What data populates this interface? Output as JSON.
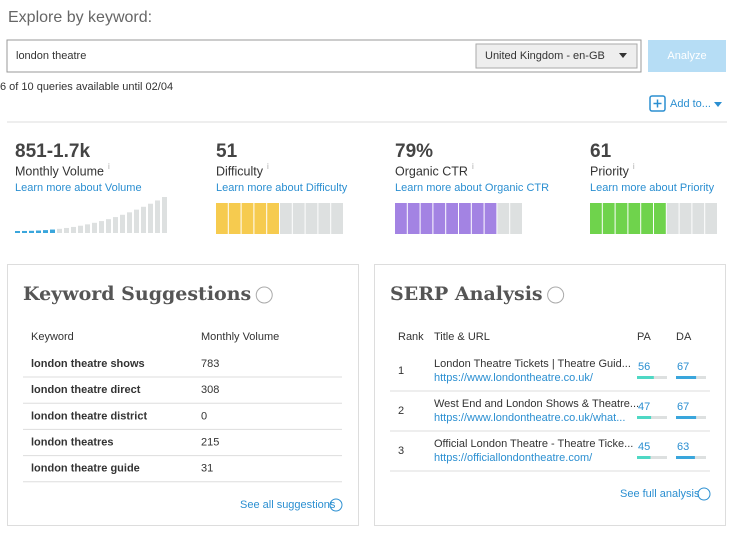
{
  "header": {
    "title": "Explore by keyword:"
  },
  "search": {
    "query": "london theatre",
    "locale": "United Kingdom - en-GB",
    "button": "Analyze",
    "quota": "6 of 10 queries available until 02/04",
    "add_to": "Add to..."
  },
  "metrics": [
    {
      "value": "851-1.7k",
      "label": "Monthly Volume",
      "link": "Learn more about Volume"
    },
    {
      "value": 51,
      "label": "Difficulty",
      "link": "Learn more about Difficulty",
      "color": "#f6cb4f"
    },
    {
      "value": 79,
      "value_label": "79%",
      "label": "Organic CTR",
      "link": "Learn more about Organic CTR",
      "color": "#a383e3"
    },
    {
      "value": 61,
      "label": "Priority",
      "link": "Learn more about Priority",
      "color": "#6fd34c"
    }
  ],
  "suggestions": {
    "title": "Keyword Suggestions",
    "columns": [
      "Keyword",
      "Monthly Volume"
    ],
    "rows": [
      [
        "london theatre shows",
        783
      ],
      [
        "london theatre direct",
        308
      ],
      [
        "london theatre district",
        0
      ],
      [
        "london theatres",
        215
      ],
      [
        "london theatre guide",
        31
      ]
    ],
    "link": "See all suggestions"
  },
  "serp": {
    "title": "SERP Analysis",
    "columns": [
      "Rank",
      "Title & URL",
      "PA",
      "DA"
    ],
    "rows": [
      {
        "rank": 1,
        "title": "London Theatre Tickets | Theatre Guid...",
        "url": "https://www.londontheatre.co.uk/",
        "pa": 56,
        "da": 67
      },
      {
        "rank": 2,
        "title": "West End and London Shows & Theatre...",
        "url": "https://www.londontheatre.co.uk/what...",
        "pa": 47,
        "da": 67
      },
      {
        "rank": 3,
        "title": "Official London Theatre - Theatre Ticke...",
        "url": "https://officiallondontheatre.com/",
        "pa": 45,
        "da": 63
      }
    ],
    "link": "See full analysis"
  }
}
